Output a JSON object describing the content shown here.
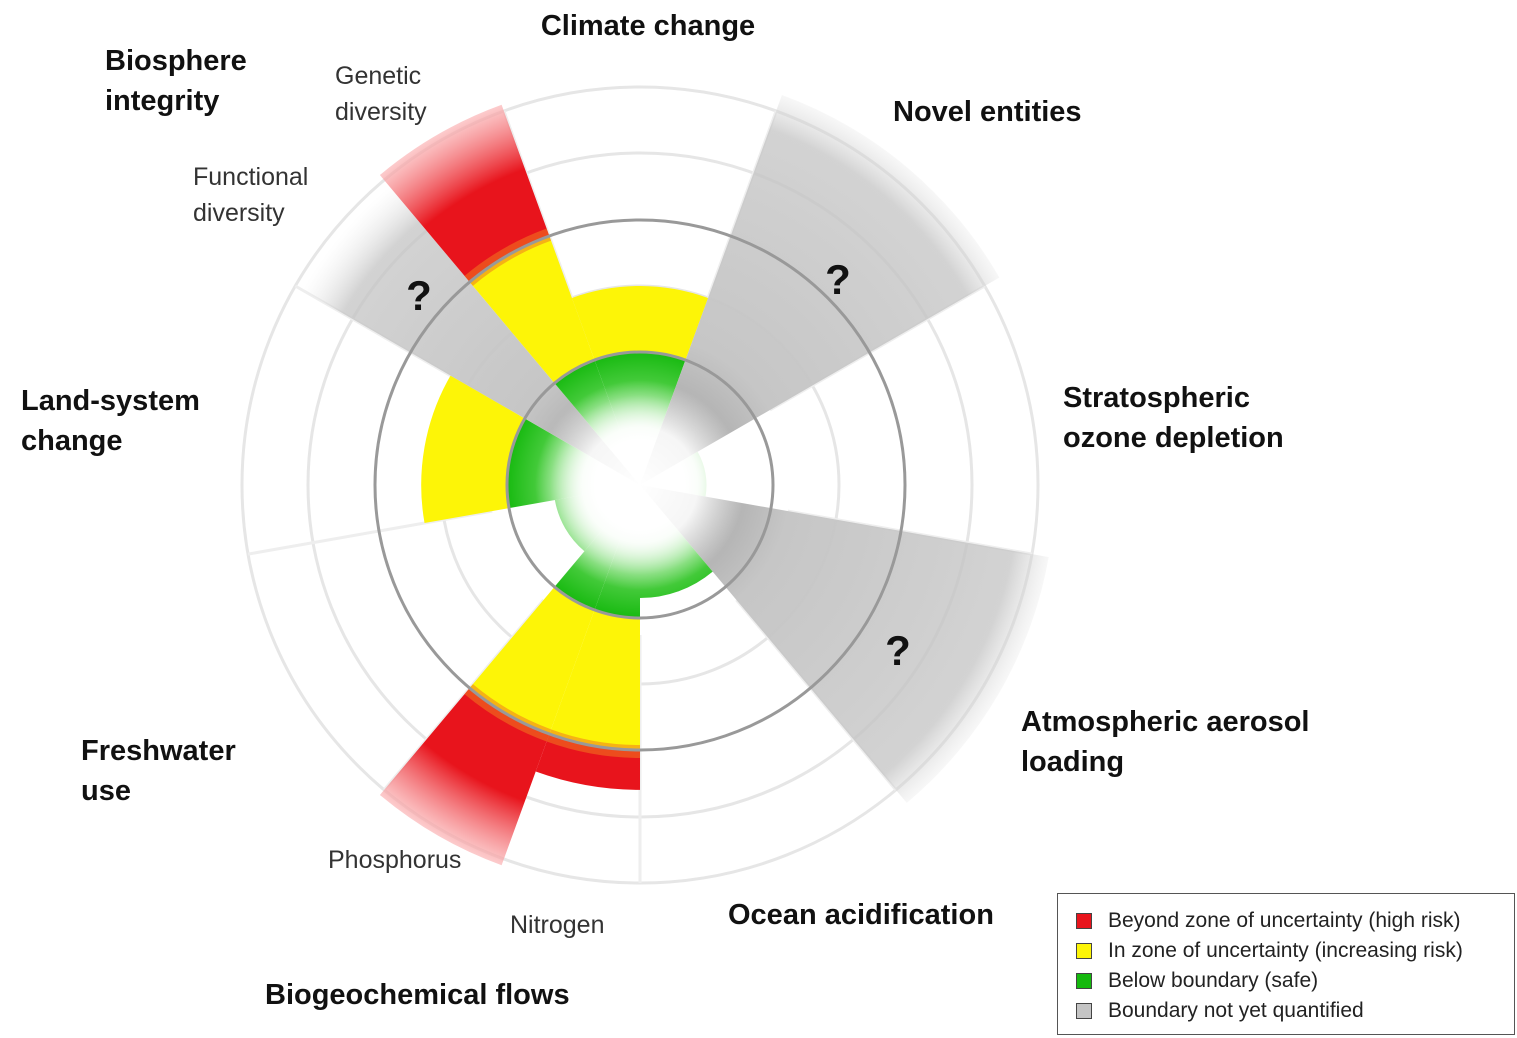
{
  "diagram": {
    "boundaries": [
      {
        "id": "climate-change",
        "label": [
          "Climate change"
        ],
        "status": "increasing-risk",
        "level": 1.5
      },
      {
        "id": "novel-entities",
        "label": [
          "Novel entities"
        ],
        "status": "not-quantified",
        "question": "?"
      },
      {
        "id": "stratospheric-ozone",
        "label": [
          "Stratospheric",
          "ozone depletion"
        ],
        "status": "safe",
        "level": 0.5
      },
      {
        "id": "atmospheric-aerosol",
        "label": [
          "Atmospheric aerosol",
          "loading"
        ],
        "status": "not-quantified",
        "question": "?"
      },
      {
        "id": "ocean-acidification",
        "label": [
          "Ocean acidification"
        ],
        "status": "safe",
        "level": 0.85
      },
      {
        "id": "biogeochemical-flows",
        "label": [
          "Biogeochemical flows"
        ],
        "status": "high-risk",
        "sub": [
          {
            "label": "Phosphorus",
            "status": "high-risk",
            "level": 2.3
          },
          {
            "label": "Nitrogen",
            "status": "high-risk",
            "level": 3.05
          }
        ]
      },
      {
        "id": "freshwater-use",
        "label": [
          "Freshwater",
          "use"
        ],
        "status": "safe",
        "level": 0.65
      },
      {
        "id": "land-system-change",
        "label": [
          "Land-system",
          "change"
        ],
        "status": "increasing-risk",
        "level": 1.65
      },
      {
        "id": "biosphere-integrity",
        "label": [
          "Biosphere",
          "integrity"
        ],
        "status": "high-risk",
        "sub": [
          {
            "label": [
              "Functional",
              "diversity"
            ],
            "status": "not-quantified",
            "question": "?"
          },
          {
            "label": [
              "Genetic",
              "diversity"
            ],
            "status": "high-risk",
            "level": 3.05
          }
        ]
      }
    ],
    "colors": {
      "high_risk": "#e8141c",
      "increasing_risk": "#fdf507",
      "safe": "#15b90e",
      "not_quantified": "#c4c4c4"
    }
  },
  "legend": {
    "items": [
      {
        "label": "Beyond zone of uncertainty (high risk)",
        "color": "#e8141c"
      },
      {
        "label": "In zone of uncertainty (increasing risk)",
        "color": "#fdf507"
      },
      {
        "label": "Below boundary (safe)",
        "color": "#15b90e"
      },
      {
        "label": "Boundary not yet quantified",
        "color": "#c4c4c4"
      }
    ]
  }
}
